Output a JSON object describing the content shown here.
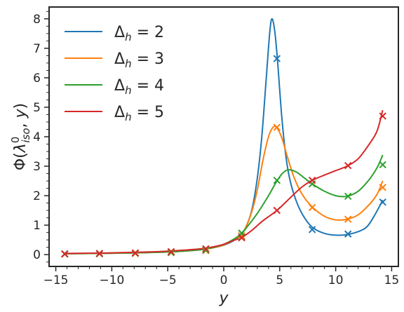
{
  "chart_data": {
    "type": "line",
    "title": "",
    "xlabel": "y",
    "ylabel": "Φ(λ⁰_iso, y)",
    "xlim": [
      -15.6,
      15.6
    ],
    "ylim": [
      -0.4,
      8.4
    ],
    "xticks": [
      -15,
      -10,
      -5,
      0,
      5,
      10,
      15
    ],
    "yticks": [
      0,
      1,
      2,
      3,
      4,
      5,
      6,
      7,
      8
    ],
    "xtick_labels": [
      "−15",
      "−10",
      "−5",
      "0",
      "5",
      "10",
      "15"
    ],
    "ytick_labels": [
      "0",
      "1",
      "2",
      "3",
      "4",
      "5",
      "6",
      "7",
      "8"
    ],
    "grid": false,
    "legend_position": "top-left",
    "series": [
      {
        "name": "Δh = 2",
        "legend_main": "Δ",
        "legend_sub": "h",
        "legend_tail": " = 2",
        "color": "#1f77b4",
        "curve": [
          [
            -14.3,
            0.03
          ],
          [
            -12,
            0.04
          ],
          [
            -10,
            0.05
          ],
          [
            -8,
            0.06
          ],
          [
            -6,
            0.08
          ],
          [
            -4,
            0.11
          ],
          [
            -2,
            0.17
          ],
          [
            -1,
            0.23
          ],
          [
            0,
            0.32
          ],
          [
            1,
            0.5
          ],
          [
            1.6,
            0.7
          ],
          [
            2,
            0.95
          ],
          [
            2.5,
            1.5
          ],
          [
            3,
            2.6
          ],
          [
            3.4,
            4.0
          ],
          [
            3.8,
            6.0
          ],
          [
            4.1,
            7.5
          ],
          [
            4.3,
            8.0
          ],
          [
            4.55,
            7.6
          ],
          [
            4.8,
            6.6
          ],
          [
            5.2,
            4.6
          ],
          [
            5.6,
            3.2
          ],
          [
            6,
            2.4
          ],
          [
            6.6,
            1.7
          ],
          [
            7.3,
            1.2
          ],
          [
            8,
            0.9
          ],
          [
            9,
            0.72
          ],
          [
            10,
            0.66
          ],
          [
            11,
            0.68
          ],
          [
            12,
            0.78
          ],
          [
            12.8,
            0.95
          ],
          [
            13.5,
            1.35
          ],
          [
            14.2,
            1.85
          ]
        ],
        "markers": [
          [
            -14.2,
            0.03
          ],
          [
            -11.1,
            0.04
          ],
          [
            -7.9,
            0.05
          ],
          [
            -4.7,
            0.07
          ],
          [
            -1.6,
            0.14
          ],
          [
            1.6,
            0.6
          ],
          [
            4.75,
            6.65
          ],
          [
            7.9,
            0.85
          ],
          [
            11.1,
            0.7
          ],
          [
            14.2,
            1.78
          ]
        ]
      },
      {
        "name": "Δh = 3",
        "legend_main": "Δ",
        "legend_sub": "h",
        "legend_tail": " = 3",
        "color": "#ff7f0e",
        "curve": [
          [
            -14.3,
            0.03
          ],
          [
            -12,
            0.04
          ],
          [
            -10,
            0.05
          ],
          [
            -8,
            0.06
          ],
          [
            -6,
            0.08
          ],
          [
            -4,
            0.11
          ],
          [
            -2,
            0.17
          ],
          [
            -1,
            0.23
          ],
          [
            0,
            0.33
          ],
          [
            1,
            0.52
          ],
          [
            1.6,
            0.72
          ],
          [
            2,
            0.95
          ],
          [
            2.5,
            1.45
          ],
          [
            3,
            2.2
          ],
          [
            3.5,
            3.2
          ],
          [
            4,
            4.0
          ],
          [
            4.4,
            4.32
          ],
          [
            4.75,
            4.3
          ],
          [
            5.2,
            3.95
          ],
          [
            5.7,
            3.3
          ],
          [
            6.3,
            2.6
          ],
          [
            7,
            2.05
          ],
          [
            7.9,
            1.62
          ],
          [
            9,
            1.3
          ],
          [
            10,
            1.18
          ],
          [
            11,
            1.2
          ],
          [
            12,
            1.35
          ],
          [
            13,
            1.7
          ],
          [
            13.7,
            2.05
          ],
          [
            14.2,
            2.5
          ]
        ],
        "markers": [
          [
            -14.2,
            0.02
          ],
          [
            -11.1,
            0.03
          ],
          [
            -7.9,
            0.04
          ],
          [
            -4.7,
            0.07
          ],
          [
            -1.6,
            0.14
          ],
          [
            1.6,
            0.64
          ],
          [
            4.75,
            4.32
          ],
          [
            7.9,
            1.6
          ],
          [
            11.1,
            1.2
          ],
          [
            14.2,
            2.28
          ]
        ]
      },
      {
        "name": "Δh = 4",
        "legend_main": "Δ",
        "legend_sub": "h",
        "legend_tail": " = 4",
        "color": "#2ca02c",
        "curve": [
          [
            -14.3,
            0.03
          ],
          [
            -12,
            0.04
          ],
          [
            -10,
            0.05
          ],
          [
            -8,
            0.06
          ],
          [
            -6,
            0.08
          ],
          [
            -4,
            0.11
          ],
          [
            -2,
            0.17
          ],
          [
            -1,
            0.24
          ],
          [
            0,
            0.35
          ],
          [
            1,
            0.55
          ],
          [
            1.6,
            0.72
          ],
          [
            2,
            0.9
          ],
          [
            3,
            1.4
          ],
          [
            4,
            2.0
          ],
          [
            4.75,
            2.5
          ],
          [
            5.3,
            2.78
          ],
          [
            5.8,
            2.88
          ],
          [
            6.5,
            2.8
          ],
          [
            7.2,
            2.6
          ],
          [
            7.9,
            2.4
          ],
          [
            9,
            2.15
          ],
          [
            10,
            2.0
          ],
          [
            11,
            1.98
          ],
          [
            12,
            2.15
          ],
          [
            13,
            2.55
          ],
          [
            13.7,
            2.95
          ],
          [
            14.2,
            3.38
          ]
        ],
        "markers": [
          [
            -14.2,
            0.02
          ],
          [
            -11.1,
            0.03
          ],
          [
            -7.9,
            0.05
          ],
          [
            -4.7,
            0.08
          ],
          [
            -1.6,
            0.16
          ],
          [
            1.6,
            0.73
          ],
          [
            4.75,
            2.52
          ],
          [
            7.9,
            2.4
          ],
          [
            11.1,
            1.98
          ],
          [
            14.2,
            3.05
          ]
        ]
      },
      {
        "name": "Δh = 5",
        "legend_main": "Δ",
        "legend_sub": "h",
        "legend_tail": " = 5",
        "color": "#d62728",
        "curve": [
          [
            -14.3,
            0.04
          ],
          [
            -12,
            0.05
          ],
          [
            -10,
            0.06
          ],
          [
            -8,
            0.08
          ],
          [
            -6,
            0.1
          ],
          [
            -4,
            0.14
          ],
          [
            -2,
            0.2
          ],
          [
            -1,
            0.26
          ],
          [
            0,
            0.35
          ],
          [
            1,
            0.5
          ],
          [
            1.6,
            0.58
          ],
          [
            2.5,
            0.82
          ],
          [
            3.5,
            1.15
          ],
          [
            4.75,
            1.5
          ],
          [
            6,
            1.95
          ],
          [
            7,
            2.3
          ],
          [
            7.9,
            2.52
          ],
          [
            9,
            2.7
          ],
          [
            10,
            2.85
          ],
          [
            11,
            3.0
          ],
          [
            12,
            3.25
          ],
          [
            13,
            3.75
          ],
          [
            13.7,
            4.2
          ],
          [
            14.2,
            4.9
          ]
        ],
        "markers": [
          [
            -14.2,
            0.02
          ],
          [
            -11.1,
            0.04
          ],
          [
            -7.9,
            0.06
          ],
          [
            -4.7,
            0.1
          ],
          [
            -1.6,
            0.2
          ],
          [
            1.6,
            0.57
          ],
          [
            4.75,
            1.5
          ],
          [
            7.9,
            2.52
          ],
          [
            11.1,
            3.02
          ],
          [
            14.2,
            4.7
          ]
        ]
      }
    ]
  }
}
